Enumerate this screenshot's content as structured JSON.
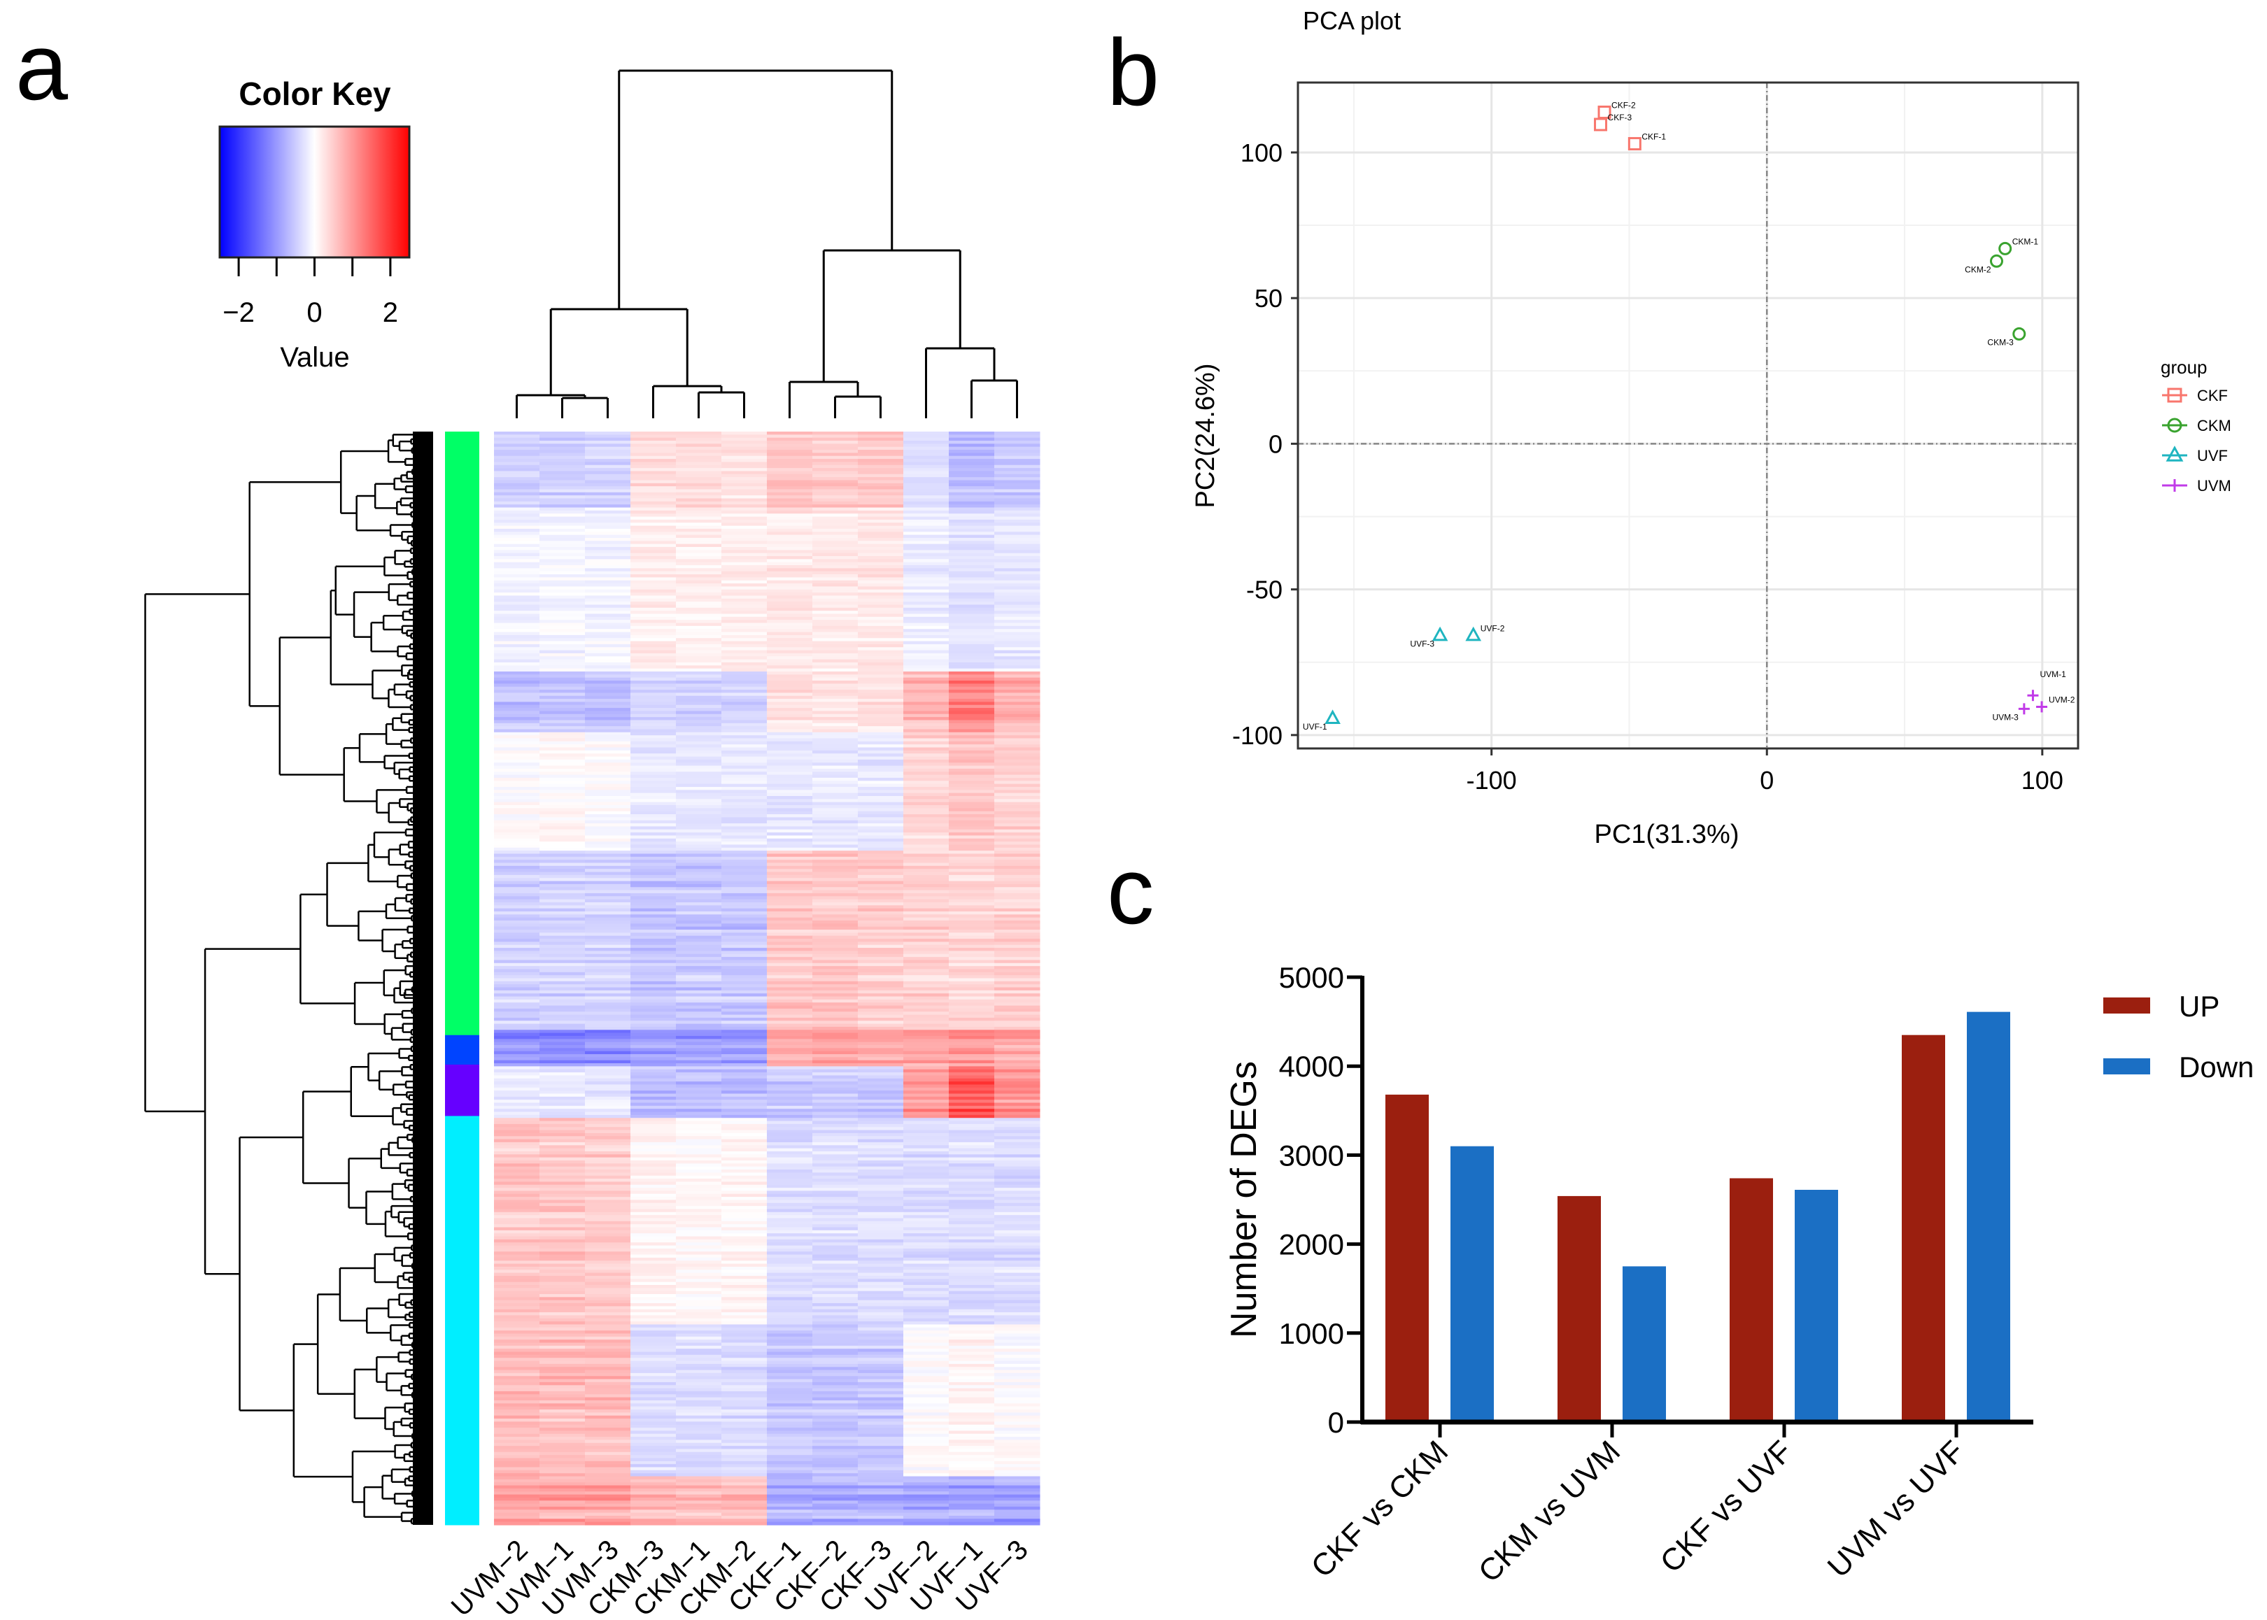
{
  "panels": {
    "a": "a",
    "b": "b",
    "c": "c"
  },
  "chart_data": [
    {
      "type": "heatmap",
      "color_key": {
        "title": "Color Key",
        "label": "Value",
        "range": [
          -2.5,
          2.5
        ],
        "ticks": [
          -2,
          -1,
          0,
          1,
          2
        ],
        "tick_labels": [
          {
            "value": -2,
            "text": "−2"
          },
          {
            "value": 0,
            "text": "0"
          },
          {
            "value": 2,
            "text": "2"
          }
        ],
        "low": "#0000ff",
        "mid": "#ffffff",
        "high": "#ff0000"
      },
      "columns": [
        "UVM−2",
        "UVM−1",
        "UVM−3",
        "CKM−3",
        "CKM−1",
        "CKM−2",
        "CKF−1",
        "CKF−2",
        "CKF−3",
        "UVF−2",
        "UVF−1",
        "UVF−3"
      ],
      "row_count": 360,
      "row_clusters": [
        {
          "color": "#00ff66",
          "share": 0.552
        },
        {
          "color": "#0044ff",
          "share": 0.027
        },
        {
          "color": "#6600ff",
          "share": 0.047
        },
        {
          "color": "#00eeff",
          "share": 0.374
        }
      ],
      "row_blocks": [
        {
          "share": 0.069,
          "values": [
            -0.4,
            -0.45,
            -0.4,
            0.3,
            0.3,
            0.25,
            0.5,
            0.45,
            0.5,
            -0.3,
            -0.6,
            -0.5
          ]
        },
        {
          "share": 0.151,
          "values": [
            -0.1,
            -0.1,
            -0.1,
            0.15,
            0.15,
            0.15,
            0.2,
            0.2,
            0.2,
            -0.15,
            -0.25,
            -0.2
          ]
        },
        {
          "share": 0.056,
          "values": [
            -0.6,
            -0.6,
            -0.6,
            -0.4,
            -0.45,
            -0.4,
            0.3,
            0.25,
            0.3,
            0.7,
            1.2,
            0.8
          ]
        },
        {
          "share": 0.108,
          "values": [
            0.0,
            0.05,
            0.0,
            -0.2,
            -0.2,
            -0.2,
            -0.2,
            -0.2,
            -0.2,
            0.35,
            0.5,
            0.4
          ]
        },
        {
          "share": 0.164,
          "values": [
            -0.4,
            -0.4,
            -0.4,
            -0.5,
            -0.5,
            -0.5,
            0.5,
            0.5,
            0.45,
            0.4,
            0.35,
            0.4
          ]
        },
        {
          "share": 0.033,
          "values": [
            -1.0,
            -1.0,
            -1.0,
            -0.9,
            -0.9,
            -0.9,
            0.8,
            0.8,
            0.8,
            0.8,
            0.9,
            0.8
          ]
        },
        {
          "share": 0.046,
          "values": [
            -0.2,
            -0.2,
            -0.2,
            -0.6,
            -0.6,
            -0.6,
            -0.5,
            -0.5,
            -0.5,
            0.9,
            1.5,
            1.0
          ]
        },
        {
          "share": 0.19,
          "values": [
            0.5,
            0.5,
            0.45,
            0.1,
            0.05,
            0.1,
            -0.3,
            -0.3,
            -0.3,
            -0.3,
            -0.3,
            -0.3
          ]
        },
        {
          "share": 0.138,
          "values": [
            0.6,
            0.6,
            0.6,
            -0.3,
            -0.3,
            -0.3,
            -0.5,
            -0.5,
            -0.5,
            0.0,
            0.1,
            0.0
          ]
        },
        {
          "share": 0.046,
          "values": [
            0.8,
            0.8,
            0.8,
            0.6,
            0.6,
            0.6,
            -0.7,
            -0.7,
            -0.7,
            -0.8,
            -0.8,
            -0.8
          ]
        }
      ]
    },
    {
      "type": "scatter",
      "title": "PCA plot",
      "xlabel": "PC1(31.3%)",
      "ylabel": "PC2(24.6%)",
      "xlim": [
        -170.3,
        113
      ],
      "ylim": [
        -104.6,
        124
      ],
      "xticks": [
        -100,
        0,
        100
      ],
      "yticks": [
        -100,
        -50,
        0,
        50,
        100
      ],
      "grid": true,
      "legend": {
        "title": "group",
        "position": "right"
      },
      "series": [
        {
          "name": "CKF",
          "color": "#f8766d",
          "marker": "square",
          "points": [
            {
              "label": "CKF-1",
              "x": -48,
              "y": 103
            },
            {
              "label": "CKF-2",
              "x": -59,
              "y": 113.8
            },
            {
              "label": "CKF-3",
              "x": -60.4,
              "y": 109.6
            }
          ]
        },
        {
          "name": "CKM",
          "color": "#3aa32f",
          "marker": "circle",
          "points": [
            {
              "label": "CKM-1",
              "x": 86.5,
              "y": 67
            },
            {
              "label": "CKM-2",
              "x": 83.4,
              "y": 62.7
            },
            {
              "label": "CKM-3",
              "x": 91.6,
              "y": 37.7
            }
          ]
        },
        {
          "name": "UVF",
          "color": "#1fb5c0",
          "marker": "triangle",
          "points": [
            {
              "label": "UVF-1",
              "x": -157.7,
              "y": -94.3
            },
            {
              "label": "UVF-2",
              "x": -106.6,
              "y": -65.8
            },
            {
              "label": "UVF-3",
              "x": -118.7,
              "y": -65.8
            }
          ]
        },
        {
          "name": "UVM",
          "color": "#c13be8",
          "marker": "plus",
          "points": [
            {
              "label": "UVM-1",
              "x": 96.6,
              "y": -86.4
            },
            {
              "label": "UVM-2",
              "x": 99.8,
              "y": -90.3
            },
            {
              "label": "UVM-3",
              "x": 93.4,
              "y": -91
            }
          ]
        }
      ]
    },
    {
      "type": "bar",
      "title": "",
      "xlabel": "",
      "ylabel": "Number of DEGs",
      "ylim": [
        0,
        5000
      ],
      "yticks": [
        0,
        1000,
        2000,
        3000,
        4000,
        5000
      ],
      "categories": [
        "CKF vs CKM",
        "CKM vs UVM",
        "CKF vs UVF",
        "UVM vs UVF"
      ],
      "legend": {
        "position": "top-right"
      },
      "series": [
        {
          "name": "UP",
          "color": "#9b1f0f",
          "values": [
            3680,
            2540,
            2740,
            4350
          ]
        },
        {
          "name": "Down",
          "color": "#1b6fc4",
          "values": [
            3100,
            1750,
            2610,
            4610
          ]
        }
      ]
    }
  ]
}
